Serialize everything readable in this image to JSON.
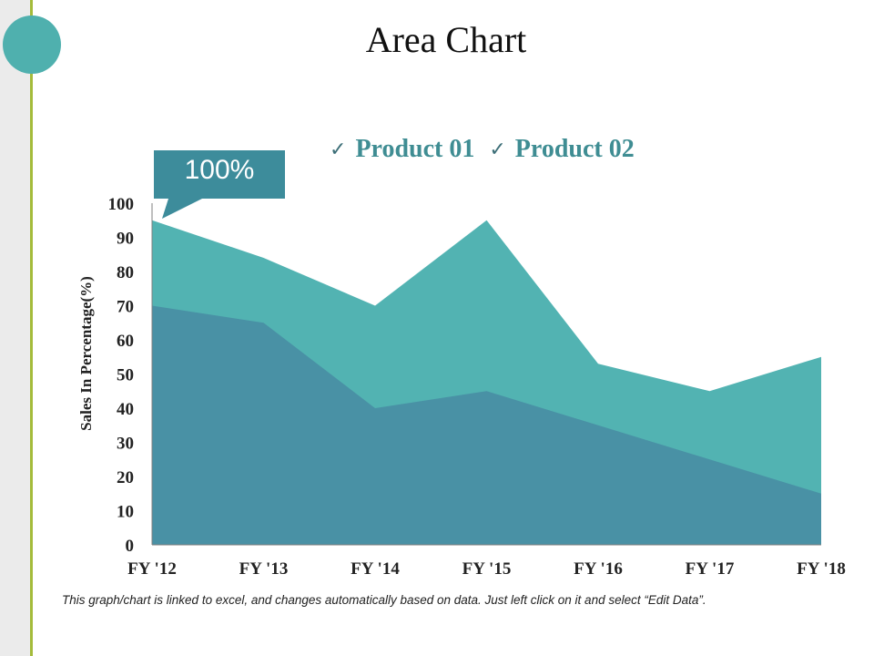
{
  "slide": {
    "title": "Area Chart",
    "caption": "This graph/chart is linked to excel, and changes automatically based on data. Just left click on it and select “Edit Data”.",
    "accent_line_color": "#a4bb3b",
    "decor_circle_color": "#4fb0ae"
  },
  "chart_data": {
    "type": "area",
    "stacked": false,
    "categories": [
      "FY '12",
      "FY '13",
      "FY '14",
      "FY '15",
      "FY '16",
      "FY '17",
      "FY '18"
    ],
    "series": [
      {
        "name": "Product 01",
        "values": [
          95,
          84,
          70,
          95,
          53,
          45,
          55
        ],
        "color": "#52b3b2"
      },
      {
        "name": "Product 02",
        "values": [
          70,
          65,
          40,
          45,
          35,
          25,
          15
        ],
        "color": "#4991a5"
      }
    ],
    "ylabel": "Sales In Percentage(%)",
    "xlabel": "",
    "ylim": [
      0,
      100
    ],
    "yticks": [
      "0",
      "10",
      "20",
      "30",
      "40",
      "50",
      "60",
      "70",
      "80",
      "90",
      "100"
    ],
    "grid": false,
    "legend_position": "top",
    "legend_marker": "✓",
    "callout": {
      "text": "100%",
      "color": "#3d8c9b"
    }
  }
}
